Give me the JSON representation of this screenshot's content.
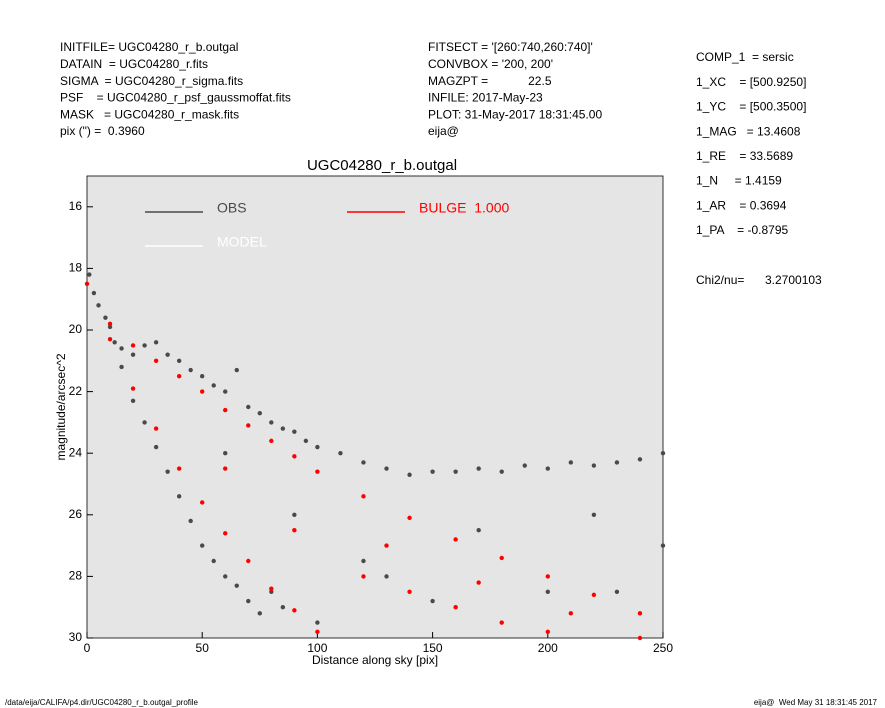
{
  "header": {
    "left": [
      "INITFILE= UGC04280_r_b.outgal",
      "DATAIN  = UGC04280_r.fits",
      "SIGMA  = UGC04280_r_sigma.fits",
      "PSF    = UGC04280_r_psf_gaussmoffat.fits",
      "MASK   = UGC04280_r_mask.fits",
      "pix (\") =  0.3960"
    ],
    "middle": [
      "FITSECT = '[260:740,260:740]'",
      "CONVBOX = '200, 200'",
      "MAGZPT =            22.5",
      "INFILE: 2017-May-23",
      "PLOT: 31-May-2017 18:31:45.00",
      "eija@"
    ],
    "right": [
      "COMP_1  = sersic",
      "1_XC    = [500.9250]",
      "1_YC    = [500.3500]",
      "1_MAG   = 13.4608",
      "1_RE    = 33.5689",
      "1_N     = 1.4159",
      "1_AR    = 0.3694",
      "1_PA    = -0.8795"
    ],
    "chi2_label": "Chi2/nu=",
    "chi2_value": "3.2700103"
  },
  "footer": {
    "left": "/data/eija/CALIFA/p4.dir/UGC04280_r_b.outgal_profile",
    "right": "eija@  Wed May 31 18:31:45 2017"
  },
  "chart_data": {
    "type": "scatter",
    "title": "UGC04280_r_b.outgal",
    "x_label": "Distance along sky [pix]",
    "y_label": "magnitude/arcsec^2",
    "xlim": [
      0,
      250
    ],
    "xticks": [
      0,
      50,
      100,
      150,
      200,
      250
    ],
    "ylim": [
      15,
      30
    ],
    "yticks": [
      16,
      18,
      20,
      22,
      24,
      26,
      28,
      30
    ],
    "y_reversed": true,
    "background": "#e5e5e5",
    "series": [
      {
        "name": "OBS",
        "color": "#4a4a4a",
        "x": [
          1,
          3,
          5,
          8,
          10,
          12,
          15,
          15,
          20,
          20,
          25,
          25,
          30,
          30,
          35,
          35,
          40,
          40,
          45,
          45,
          50,
          50,
          55,
          55,
          60,
          60,
          65,
          65,
          70,
          70,
          75,
          75,
          80,
          80,
          85,
          85,
          90,
          95,
          100,
          100,
          110,
          120,
          130,
          140,
          150,
          150,
          160,
          170,
          180,
          190,
          200,
          200,
          210,
          220,
          230,
          240,
          250,
          250,
          120,
          170,
          220,
          60,
          90,
          130,
          230
        ],
        "values": [
          18.2,
          18.8,
          19.2,
          19.6,
          19.9,
          20.4,
          20.6,
          21.2,
          20.8,
          22.3,
          20.5,
          23.0,
          20.4,
          23.8,
          20.8,
          24.6,
          21.0,
          25.4,
          21.3,
          26.2,
          21.5,
          27.0,
          21.8,
          27.5,
          22.0,
          28.0,
          21.3,
          28.3,
          22.5,
          28.8,
          22.7,
          29.2,
          23.0,
          28.5,
          23.2,
          29.0,
          23.3,
          23.6,
          23.8,
          29.5,
          24.0,
          24.3,
          24.5,
          24.7,
          24.6,
          28.8,
          24.6,
          24.5,
          24.6,
          24.4,
          24.5,
          28.5,
          24.3,
          24.4,
          24.3,
          24.2,
          24.0,
          27.0,
          27.5,
          26.5,
          26.0,
          24.0,
          26.0,
          28.0,
          28.5
        ]
      },
      {
        "name": "MODEL",
        "color": "#ffffff",
        "x": [],
        "values": []
      },
      {
        "name": "BULGE  1.000",
        "color": "#ff0000",
        "x": [
          0,
          10,
          10,
          20,
          20,
          30,
          30,
          40,
          40,
          50,
          50,
          60,
          60,
          70,
          70,
          80,
          80,
          90,
          90,
          100,
          100,
          120,
          140,
          160,
          180,
          200,
          220,
          240,
          120,
          140,
          160,
          180,
          200,
          240,
          130,
          170,
          210,
          60,
          90
        ],
        "values": [
          18.5,
          19.8,
          20.3,
          20.5,
          21.9,
          21.0,
          23.2,
          21.5,
          24.5,
          22.0,
          25.6,
          22.6,
          26.6,
          23.1,
          27.5,
          23.6,
          28.4,
          24.1,
          29.1,
          24.6,
          29.8,
          25.4,
          26.1,
          26.8,
          27.4,
          28.0,
          28.6,
          29.2,
          28.0,
          28.5,
          29.0,
          29.5,
          29.8,
          30.0,
          27.0,
          28.2,
          29.2,
          24.5,
          26.5
        ]
      }
    ]
  }
}
